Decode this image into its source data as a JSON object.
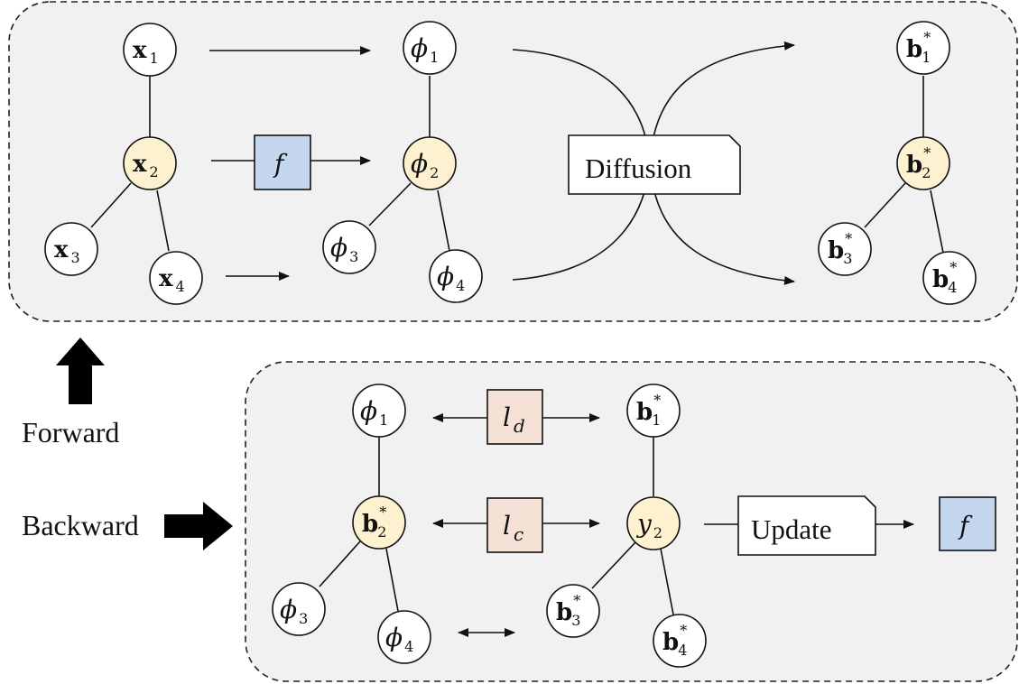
{
  "forward_panel": {
    "input_nodes": [
      {
        "base": "x",
        "sub": "1"
      },
      {
        "base": "x",
        "sub": "2"
      },
      {
        "base": "x",
        "sub": "3"
      },
      {
        "base": "x",
        "sub": "4"
      }
    ],
    "encoder_label": "f",
    "embedding_nodes": [
      {
        "base": "ϕ",
        "sub": "1"
      },
      {
        "base": "ϕ",
        "sub": "2"
      },
      {
        "base": "ϕ",
        "sub": "3"
      },
      {
        "base": "ϕ",
        "sub": "4"
      }
    ],
    "process_label": "Diffusion",
    "output_nodes": [
      {
        "base": "b",
        "sub": "1",
        "sup": "*"
      },
      {
        "base": "b",
        "sub": "2",
        "sup": "*"
      },
      {
        "base": "b",
        "sub": "3",
        "sup": "*"
      },
      {
        "base": "b",
        "sub": "4",
        "sup": "*"
      }
    ]
  },
  "backward_panel": {
    "left_nodes": [
      {
        "base": "ϕ",
        "sub": "1"
      },
      {
        "base": "b",
        "sub": "2",
        "sup": "*"
      },
      {
        "base": "ϕ",
        "sub": "3"
      },
      {
        "base": "ϕ",
        "sub": "4"
      }
    ],
    "loss_d": {
      "base": "l",
      "sub": "d"
    },
    "loss_c": {
      "base": "l",
      "sub": "c"
    },
    "right_nodes": [
      {
        "base": "b",
        "sub": "1",
        "sup": "*"
      },
      {
        "base": "y",
        "sub": "2"
      },
      {
        "base": "b",
        "sub": "3",
        "sup": "*"
      },
      {
        "base": "b",
        "sub": "4",
        "sup": "*"
      }
    ],
    "process_label": "Update",
    "encoder_label": "f"
  },
  "legend": {
    "forward_label": "Forward",
    "backward_label": "Backward"
  }
}
